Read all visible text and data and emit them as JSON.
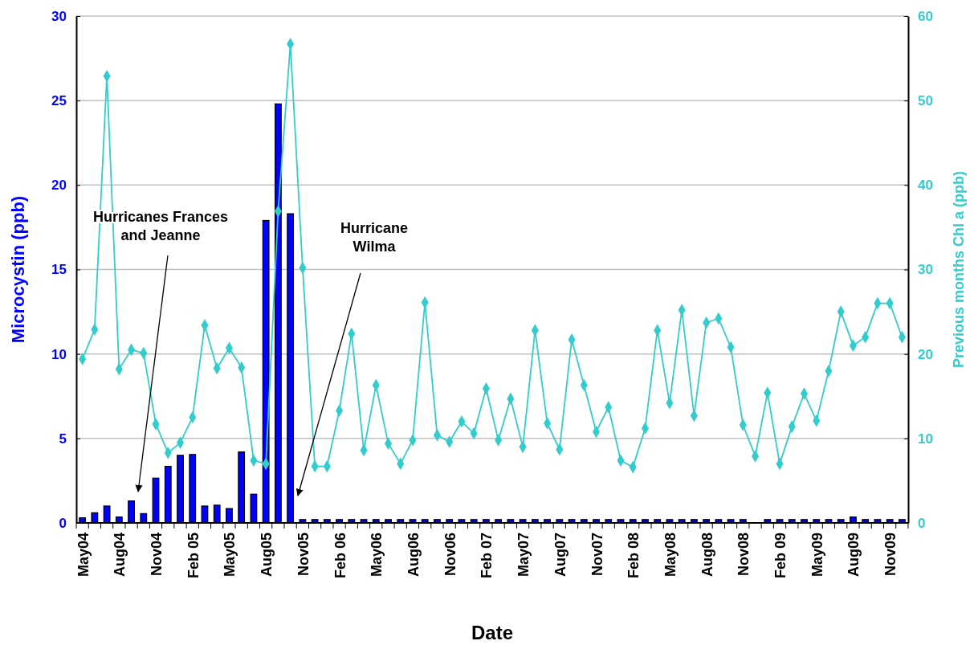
{
  "chart_data": {
    "type": "bar",
    "xlabel": "Date",
    "ylabel": "Microcystin (ppb)",
    "y2label": "Previous months Chl a (ppb)",
    "categories": [
      "May04",
      null,
      null,
      "Aug04",
      null,
      null,
      "Nov04",
      null,
      null,
      "Feb 05",
      null,
      null,
      "May05",
      null,
      null,
      "Aug05",
      null,
      null,
      "Nov05",
      null,
      null,
      "Feb 06",
      null,
      null,
      "May06",
      null,
      null,
      "Aug06",
      null,
      null,
      "Nov06",
      null,
      null,
      "Feb 07",
      null,
      null,
      "May07",
      null,
      null,
      "Aug07",
      null,
      null,
      "Nov07",
      null,
      null,
      "Feb 08",
      null,
      null,
      "May08",
      null,
      null,
      "Aug08",
      null,
      null,
      "Nov08",
      null,
      null,
      "Feb 09",
      null,
      null,
      "May09",
      null,
      null,
      "Aug09",
      null,
      null,
      "Nov09",
      null
    ],
    "series": [
      {
        "color": "#0000ff",
        "values": [
          0.3,
          0.6,
          1.0,
          0.35,
          1.3,
          0.55,
          2.65,
          3.35,
          4.0,
          4.05,
          1.0,
          1.05,
          0.85,
          4.2,
          1.7,
          17.9,
          24.8,
          18.3,
          0.2,
          0.2,
          0.2,
          0.2,
          0.2,
          0.2,
          0.2,
          0.2,
          0.2,
          0.2,
          0.2,
          0.2,
          0.2,
          0.2,
          0.2,
          0.2,
          0.2,
          0.2,
          0.2,
          0.2,
          0.2,
          0.2,
          0.2,
          0.2,
          0.2,
          0.2,
          0.2,
          0.2,
          0.2,
          0.2,
          0.2,
          0.2,
          0.2,
          0.2,
          0.2,
          0.2,
          0.2,
          null,
          0.2,
          0.2,
          0.2,
          0.2,
          0.2,
          0.2,
          0.2,
          0.35,
          0.2,
          0.2,
          0.2,
          0.2
        ]
      },
      {
        "type": "line",
        "axis": "y2",
        "color": "#33cccc",
        "marker": "diamond",
        "values": [
          19.4,
          22.9,
          52.9,
          18.2,
          20.5,
          20.1,
          11.7,
          8.3,
          9.5,
          12.5,
          23.4,
          18.3,
          20.7,
          18.4,
          7.4,
          7.0,
          36.9,
          56.7,
          30.2,
          6.7,
          6.7,
          13.3,
          22.4,
          8.6,
          16.3,
          9.4,
          7.0,
          9.8,
          26.1,
          10.4,
          9.6,
          12.0,
          10.6,
          15.9,
          9.8,
          14.7,
          9.0,
          22.8,
          11.8,
          8.7,
          21.7,
          16.3,
          10.8,
          13.7,
          7.4,
          6.6,
          11.2,
          22.8,
          14.2,
          25.2,
          12.7,
          23.7,
          24.2,
          20.8,
          11.6,
          7.9,
          15.4,
          7.0,
          11.4,
          15.3,
          12.1,
          18.0,
          25.0,
          21.0,
          22.0,
          26.0,
          26.0,
          22.0
        ]
      }
    ],
    "ylim": [
      0,
      30
    ],
    "yticks": [
      0,
      5,
      10,
      15,
      20,
      25,
      30
    ],
    "y2lim": [
      0,
      60
    ],
    "y2ticks": [
      0,
      10,
      20,
      30,
      40,
      50,
      60
    ],
    "grid": "y",
    "annotations": [
      "Hurricanes Frances and Jeanne",
      "Hurricane Wilma"
    ]
  }
}
